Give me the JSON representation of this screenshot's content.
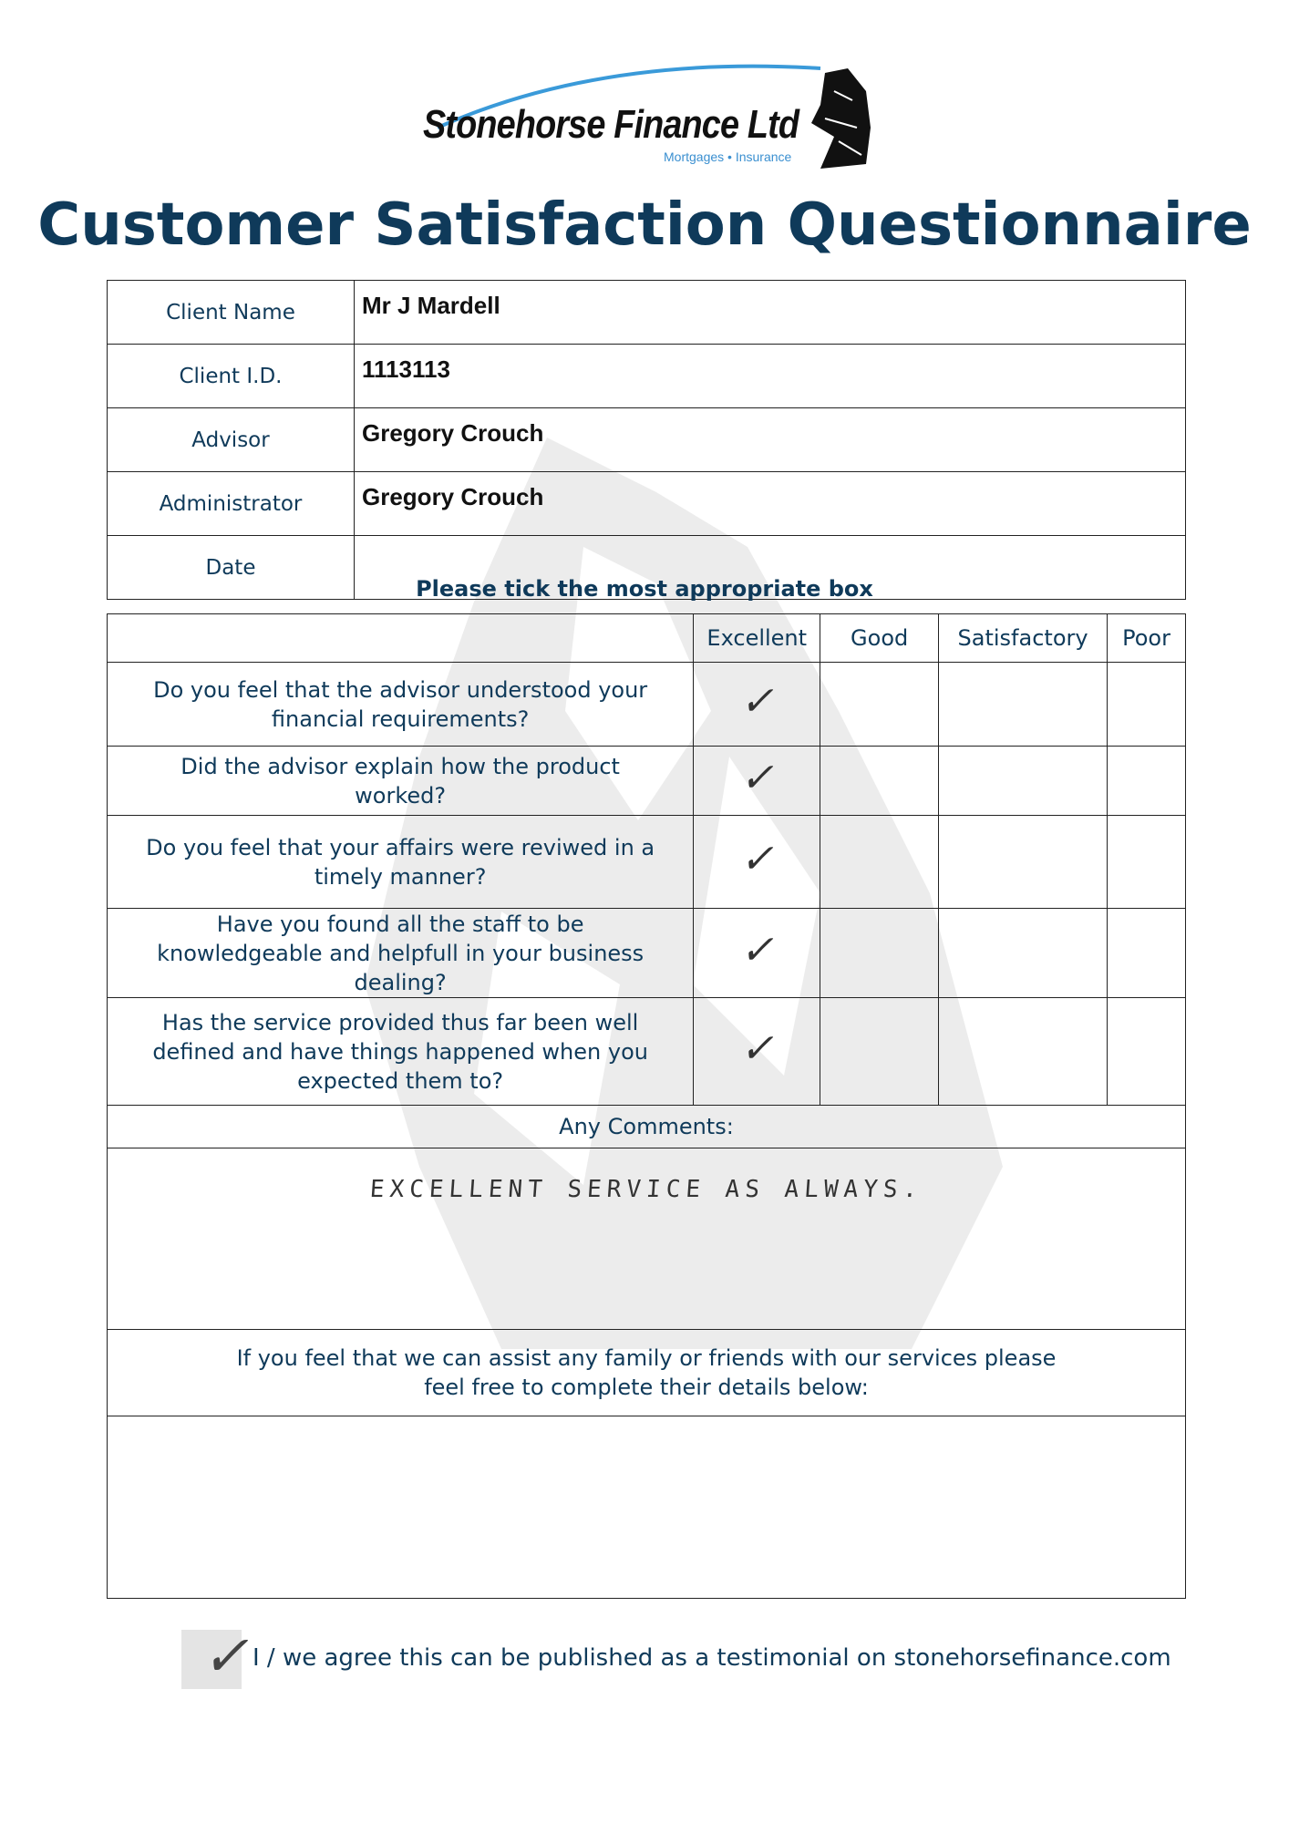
{
  "logo": {
    "name": "Stonehorse Finance Ltd",
    "tagline": "Mortgages • Insurance",
    "swoosh_color": "#3a9ad9"
  },
  "title": "Customer Satisfaction Questionnaire",
  "client_info": [
    {
      "label": "Client Name",
      "value": "Mr J Mardell"
    },
    {
      "label": "Client I.D.",
      "value": "1113113"
    },
    {
      "label": "Advisor",
      "value": "Gregory Crouch"
    },
    {
      "label": "Administrator",
      "value": "Gregory Crouch"
    },
    {
      "label": "Date",
      "value": ""
    }
  ],
  "instruction": "Please tick the most appropriate box",
  "rating": {
    "columns": [
      "Excellent",
      "Good",
      "Satisfactory",
      "Poor"
    ],
    "tick_mark": "✓",
    "questions": [
      {
        "text": "Do you feel that the advisor understood your financial requirements?",
        "selected": "Excellent"
      },
      {
        "text": "Did the advisor explain how the product worked?",
        "selected": "Excellent"
      },
      {
        "text": "Do you feel that your affairs were reviwed in a timely manner?",
        "selected": "Excellent"
      },
      {
        "text": "Have you found all the staff to be knowledgeable and helpfull in your business dealing?",
        "selected": "Excellent"
      },
      {
        "text": "Has the service provided thus far been well defined and have things happened when you expected them to?",
        "selected": "Excellent"
      }
    ]
  },
  "comments": {
    "label": "Any Comments:",
    "value": "EXCELLENT SERVICE AS ALWAYS."
  },
  "referral": {
    "text": "If you feel that we can assist any family or friends with our services please feel free to complete their details below:",
    "value": ""
  },
  "testimonial": {
    "checked": true,
    "tick_mark": "✓",
    "text": "I / we agree this can be published as a testimonial on stonehorsefinance.com"
  },
  "colors": {
    "heading": "#0f3a5a",
    "checkbox_bg": "#e4e4e4"
  }
}
